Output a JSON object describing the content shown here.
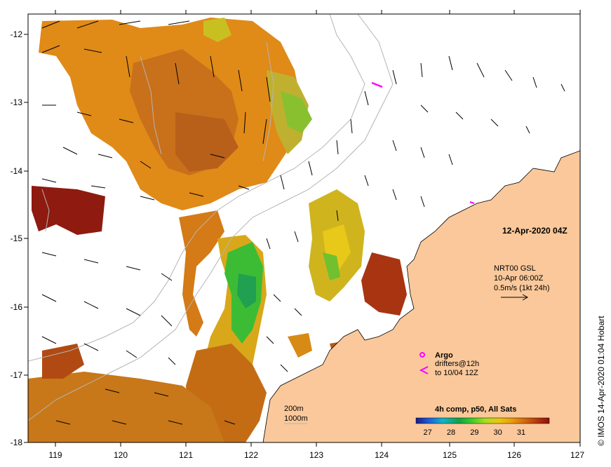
{
  "map": {
    "date_label": "12-Apr-2020 04Z",
    "credit": "© IMOS 14-Apr-2020 01:04 Hobart",
    "lon_ticks": [
      "119",
      "120",
      "121",
      "122",
      "123",
      "124",
      "125",
      "126",
      "127"
    ],
    "lat_ticks": [
      "-12",
      "-13",
      "-14",
      "-15",
      "-16",
      "-17",
      "-18"
    ],
    "lon_range": [
      118.6,
      127.0
    ],
    "lat_range": [
      -11.75,
      -18.0
    ]
  },
  "current_legend": {
    "line1": "NRT00 GSL",
    "line2": "10-Apr 06:00Z",
    "line3": "0.5m/s (1kt 24h)"
  },
  "drifter_legend": {
    "argo": "Argo",
    "drifters_line1": "drifters@12h",
    "drifters_line2": "to 10/04 12Z",
    "argo_color": "#ff00ff",
    "drifter_color": "#ff00ff"
  },
  "isobath_legend": {
    "label_200": "200m",
    "label_1000": "1000m"
  },
  "colorbar": {
    "title": "4h comp, p50, All Sats",
    "ticks": [
      "27",
      "28",
      "29",
      "30",
      "31"
    ],
    "tick_values": [
      27,
      28,
      29,
      30,
      31
    ],
    "range": [
      26.5,
      32.2
    ],
    "colors": [
      "#1a1a8c",
      "#1f5fd8",
      "#13b3c8",
      "#12a04a",
      "#3fcc2a",
      "#aadd22",
      "#e8c812",
      "#e89c10",
      "#d0680e",
      "#b0320c",
      "#8c1010"
    ]
  },
  "colors": {
    "land": "#fac89a",
    "coast": "#000000",
    "isobath": "#b4b4b4"
  }
}
